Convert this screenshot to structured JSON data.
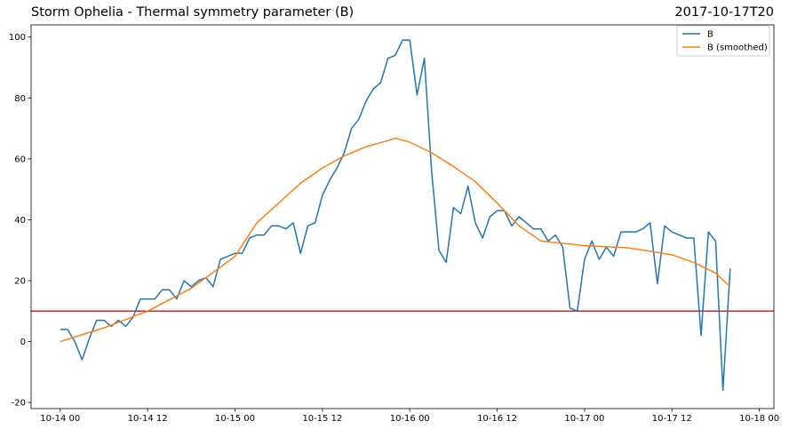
{
  "chart_data": {
    "type": "line",
    "title": "Storm Ophelia - Thermal symmetry parameter (B)",
    "title_right": "2017-10-17T20",
    "xlabel": "",
    "ylabel": "",
    "x_ticks": [
      "10-14 00",
      "10-14 12",
      "10-15 00",
      "10-15 12",
      "10-16 00",
      "10-16 12",
      "10-17 00",
      "10-17 12",
      "10-18 00"
    ],
    "y_ticks": [
      -20,
      0,
      20,
      40,
      60,
      80,
      100
    ],
    "xlim": [
      "2017-10-13T20",
      "2017-10-18T02"
    ],
    "ylim": [
      -22,
      104
    ],
    "grid": false,
    "legend_position": "top-right",
    "threshold": {
      "value": 10,
      "color": "#d62728"
    },
    "series": [
      {
        "name": "B",
        "color": "#1f77b4",
        "x": [
          "2017-10-14T00",
          "2017-10-14T01",
          "2017-10-14T02",
          "2017-10-14T03",
          "2017-10-14T04",
          "2017-10-14T05",
          "2017-10-14T06",
          "2017-10-14T07",
          "2017-10-14T08",
          "2017-10-14T09",
          "2017-10-14T10",
          "2017-10-14T11",
          "2017-10-14T12",
          "2017-10-14T13",
          "2017-10-14T14",
          "2017-10-14T15",
          "2017-10-14T16",
          "2017-10-14T17",
          "2017-10-14T18",
          "2017-10-14T19",
          "2017-10-14T20",
          "2017-10-14T21",
          "2017-10-14T22",
          "2017-10-14T23",
          "2017-10-15T00",
          "2017-10-15T01",
          "2017-10-15T02",
          "2017-10-15T03",
          "2017-10-15T04",
          "2017-10-15T05",
          "2017-10-15T06",
          "2017-10-15T07",
          "2017-10-15T08",
          "2017-10-15T09",
          "2017-10-15T10",
          "2017-10-15T11",
          "2017-10-15T12",
          "2017-10-15T13",
          "2017-10-15T14",
          "2017-10-15T15",
          "2017-10-15T16",
          "2017-10-15T17",
          "2017-10-15T18",
          "2017-10-15T19",
          "2017-10-15T20",
          "2017-10-15T21",
          "2017-10-15T22",
          "2017-10-15T23",
          "2017-10-16T00",
          "2017-10-16T01",
          "2017-10-16T02",
          "2017-10-16T03",
          "2017-10-16T04",
          "2017-10-16T05",
          "2017-10-16T06",
          "2017-10-16T07",
          "2017-10-16T08",
          "2017-10-16T09",
          "2017-10-16T10",
          "2017-10-16T11",
          "2017-10-16T12",
          "2017-10-16T13",
          "2017-10-16T14",
          "2017-10-16T15",
          "2017-10-16T16",
          "2017-10-16T17",
          "2017-10-16T18",
          "2017-10-16T19",
          "2017-10-16T20",
          "2017-10-16T21",
          "2017-10-16T22",
          "2017-10-16T23",
          "2017-10-17T00",
          "2017-10-17T01",
          "2017-10-17T02",
          "2017-10-17T03",
          "2017-10-17T04",
          "2017-10-17T05",
          "2017-10-17T06",
          "2017-10-17T07",
          "2017-10-17T08",
          "2017-10-17T09",
          "2017-10-17T10",
          "2017-10-17T11",
          "2017-10-17T12",
          "2017-10-17T13",
          "2017-10-17T14",
          "2017-10-17T15",
          "2017-10-17T16",
          "2017-10-17T17",
          "2017-10-17T18",
          "2017-10-17T19",
          "2017-10-17T20"
        ],
        "values": [
          4,
          4,
          0,
          -6,
          1,
          7,
          7,
          5,
          7,
          5,
          8,
          14,
          14,
          14,
          17,
          17,
          14,
          20,
          18,
          20,
          21,
          18,
          27,
          28,
          29,
          29,
          34,
          35,
          35,
          38,
          38,
          37,
          39,
          29,
          38,
          39,
          48,
          53,
          57,
          62,
          70,
          73,
          79,
          83,
          85,
          93,
          94,
          99,
          99,
          81,
          93,
          56,
          30,
          26,
          44,
          42,
          51,
          39,
          34,
          41,
          43,
          43,
          38,
          41,
          39,
          37,
          37,
          33,
          35,
          31,
          11,
          10,
          27,
          33,
          27,
          31,
          28,
          36,
          36,
          36,
          37,
          39,
          19,
          38,
          36,
          35,
          34,
          34,
          2,
          36,
          33,
          -16,
          24
        ]
      },
      {
        "name": "B (smoothed)",
        "color": "#ff7f0e",
        "x": [
          "2017-10-14T00",
          "2017-10-14T06",
          "2017-10-14T12",
          "2017-10-14T18",
          "2017-10-15T00",
          "2017-10-15T03",
          "2017-10-15T06",
          "2017-10-15T09",
          "2017-10-15T12",
          "2017-10-15T15",
          "2017-10-15T18",
          "2017-10-15T21",
          "2017-10-15T22",
          "2017-10-16T00",
          "2017-10-16T03",
          "2017-10-16T06",
          "2017-10-16T09",
          "2017-10-16T12",
          "2017-10-16T15",
          "2017-10-16T18",
          "2017-10-17T00",
          "2017-10-17T06",
          "2017-10-17T12",
          "2017-10-17T15",
          "2017-10-17T18",
          "2017-10-17T20"
        ],
        "values": [
          0,
          4.5,
          10,
          17.5,
          28,
          39,
          45.5,
          52,
          57,
          61,
          64,
          66,
          66.8,
          65.5,
          62,
          57.5,
          52.5,
          45.5,
          38,
          33,
          31.5,
          30.8,
          28.5,
          26,
          22.5,
          18
        ]
      }
    ]
  }
}
